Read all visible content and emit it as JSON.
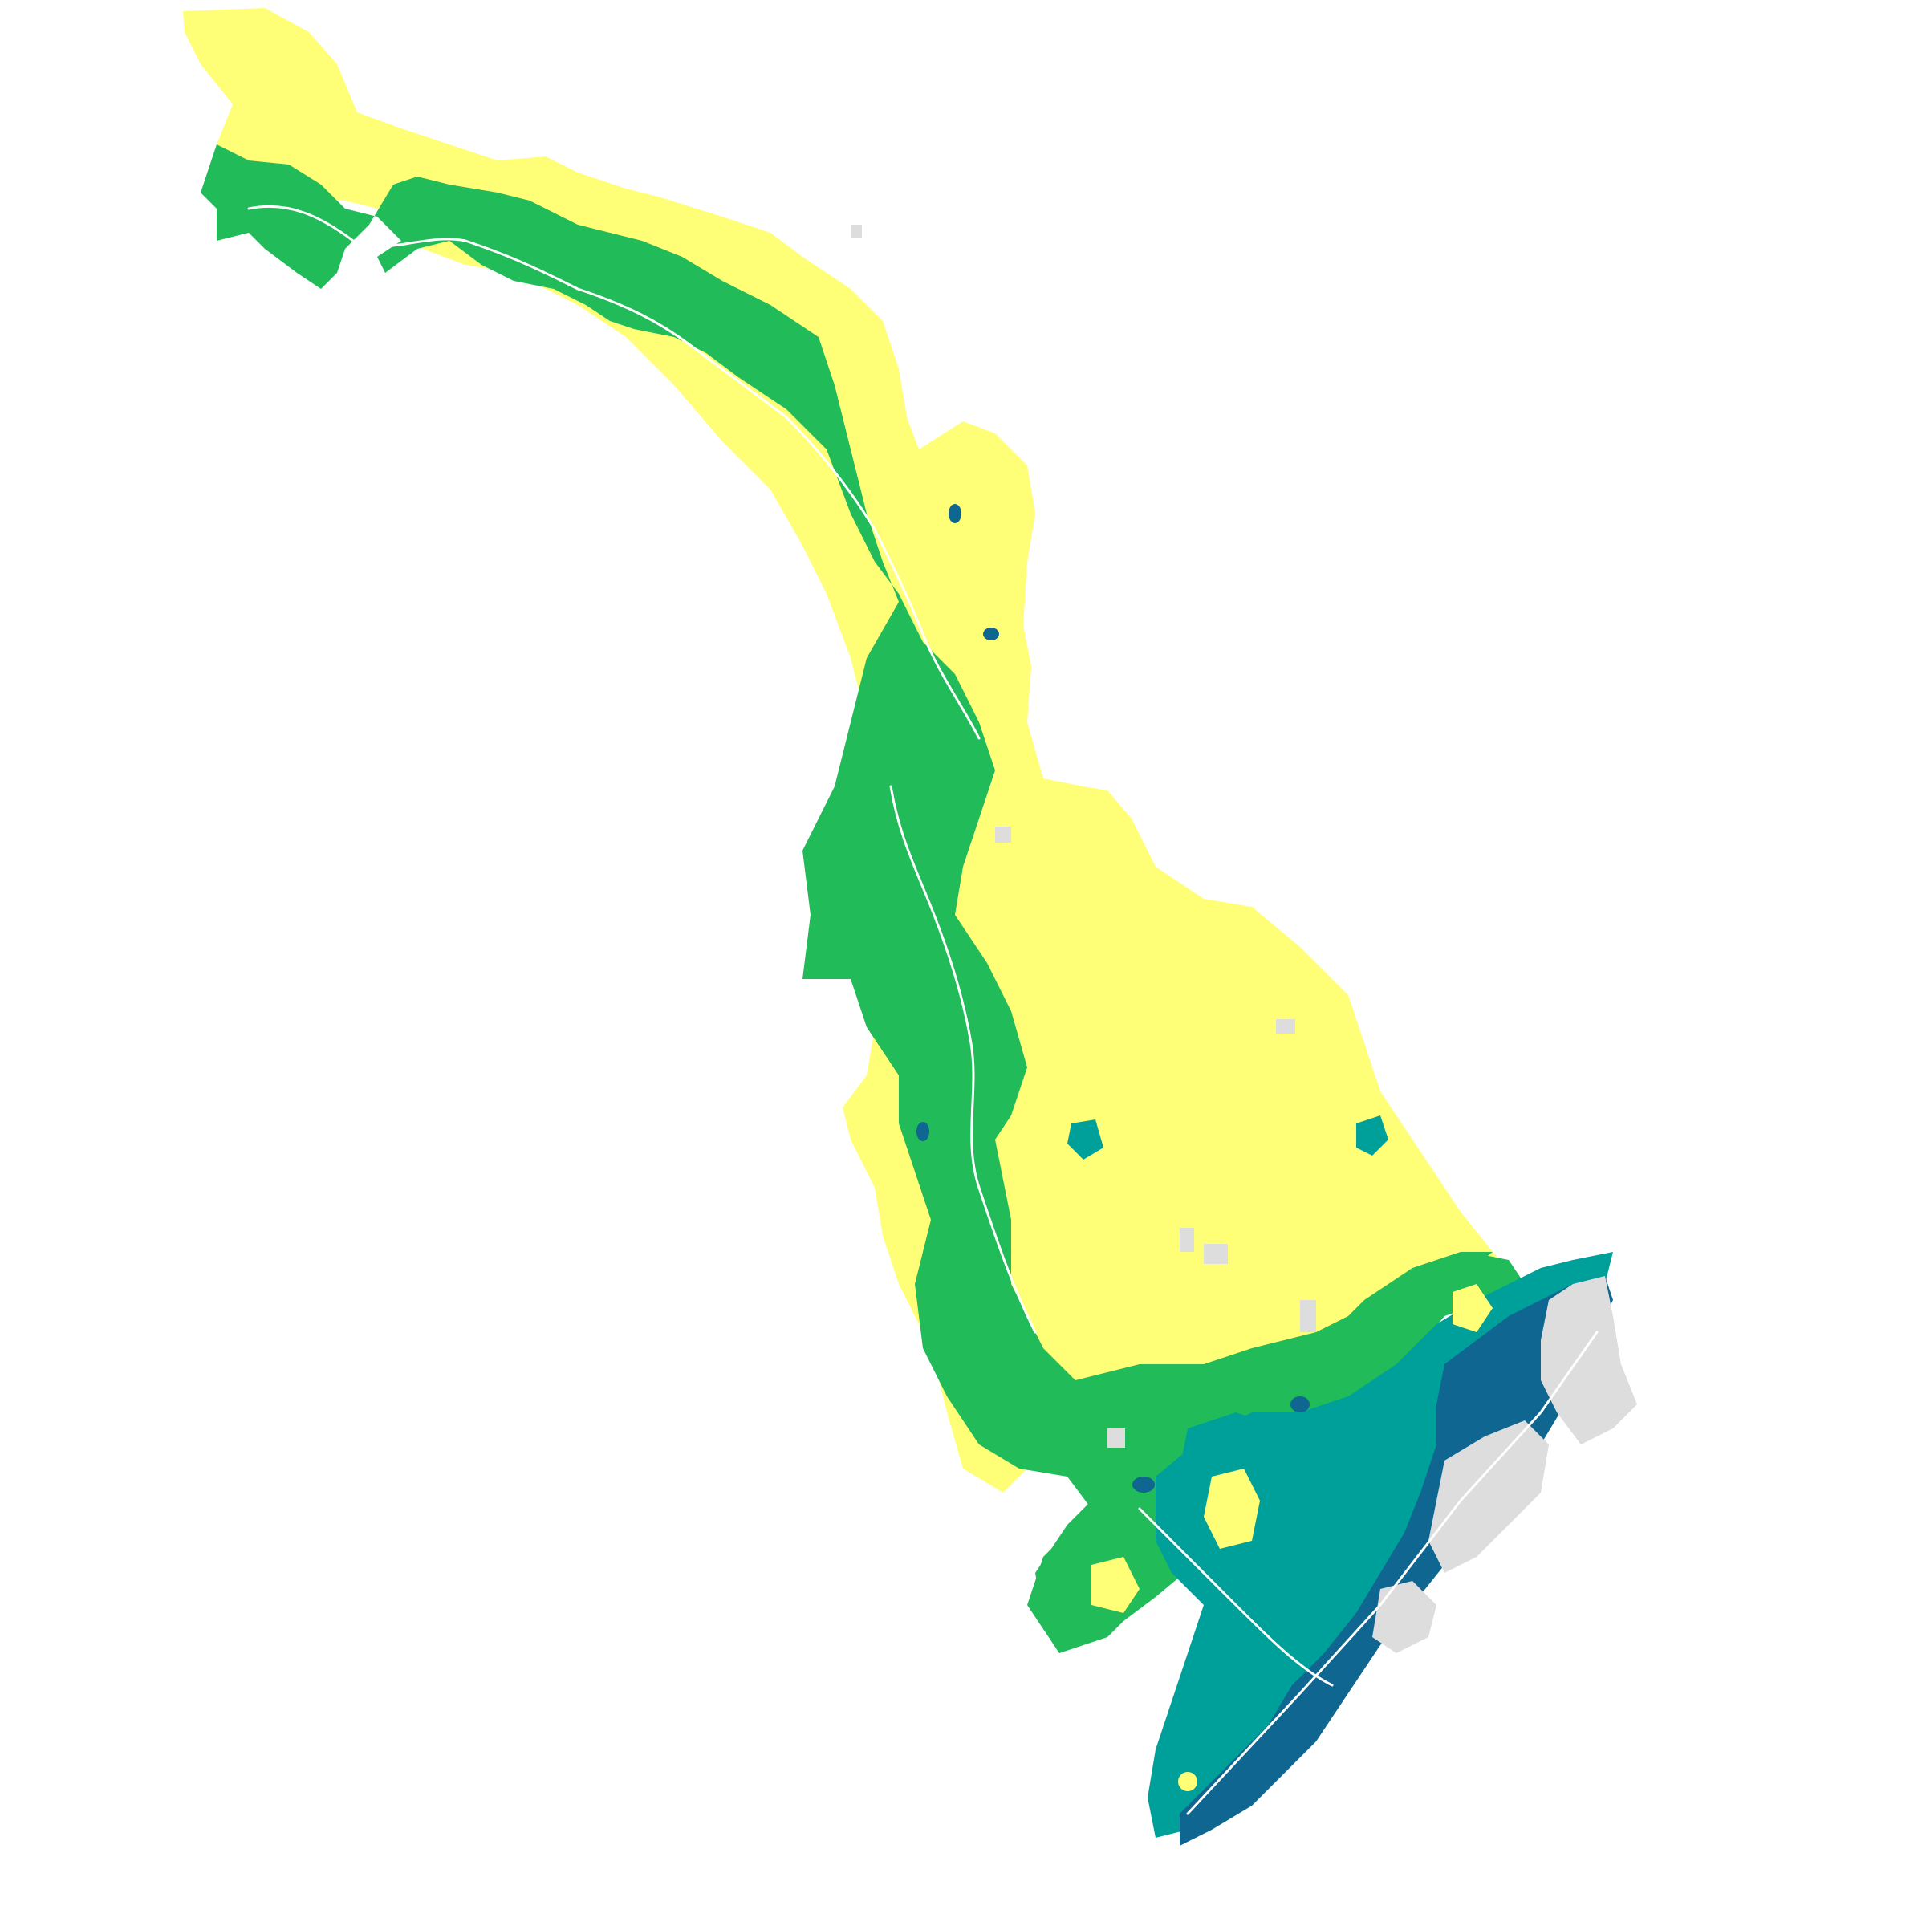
{
  "map": {
    "basemap": "none",
    "background_color": "#ffffff",
    "labels": [],
    "legend": null
  },
  "classes": [
    {
      "id": "c1",
      "color": "#ffff77",
      "fill_rank": 1
    },
    {
      "id": "c2",
      "color": "#22bb5a",
      "fill_rank": 2
    },
    {
      "id": "c3",
      "color": "#00a09a",
      "fill_rank": 3
    },
    {
      "id": "c4",
      "color": "#0f6690",
      "fill_rank": 4
    },
    {
      "id": "c5",
      "color": "#dddddd",
      "fill_rank": 5
    },
    {
      "id": "line",
      "color": "#ffffff",
      "fill_rank": 0
    }
  ]
}
